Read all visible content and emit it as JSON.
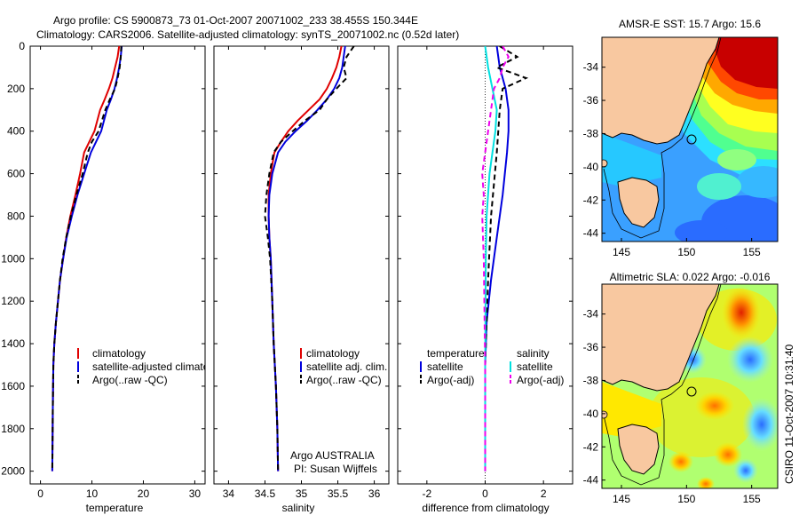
{
  "title_line1": "Argo profile: CS 5900873_73 01-Oct-2007 20071002_233 38.455S 150.344E",
  "title_line2": "Climatology: CARS2006. Satellite-adjusted climatology: synTS_20071002.nc (0.52d later)",
  "credit": "CSIRO 11-Oct-2007 10:31:40",
  "colors": {
    "clim": "#e00000",
    "sat": "#0000dd",
    "argo": "#000000",
    "salsat": "#00e0e0",
    "salargo": "#ee00ee"
  },
  "chart_data": [
    {
      "type": "line",
      "xlabel": "temperature",
      "xlim": [
        -2,
        32
      ],
      "xticks": [
        0,
        10,
        20,
        30
      ],
      "ylim": [
        0,
        2060
      ],
      "yticks": [
        0,
        200,
        400,
        600,
        800,
        1000,
        1200,
        1400,
        1600,
        1800,
        2000
      ],
      "y_reversed": true,
      "legend": [
        "climatology",
        "satellite-adjusted climatology",
        "Argo(..raw -QC)"
      ],
      "series": [
        {
          "name": "climatology",
          "color": "#e00000",
          "dash": "",
          "x": [
            15.3,
            15.0,
            14.5,
            14.0,
            13.3,
            12.5,
            11.6,
            10.5,
            9.5,
            8.5,
            7.7,
            6.8,
            5.8,
            5.0,
            4.4,
            3.8,
            3.4,
            3.0,
            2.7,
            2.5,
            2.4,
            2.3
          ],
          "y": [
            0,
            50,
            100,
            150,
            200,
            250,
            300,
            400,
            450,
            500,
            600,
            700,
            800,
            900,
            1000,
            1100,
            1200,
            1300,
            1400,
            1500,
            1700,
            2000
          ]
        },
        {
          "name": "satellite-adjusted climatology",
          "color": "#0000dd",
          "dash": "",
          "x": [
            15.8,
            15.6,
            15.3,
            14.9,
            14.4,
            13.7,
            12.9,
            11.8,
            10.8,
            9.8,
            8.5,
            7.2,
            6.1,
            5.1,
            4.4,
            3.8,
            3.4,
            3.0,
            2.7,
            2.5,
            2.4,
            2.3
          ],
          "y": [
            0,
            50,
            100,
            150,
            200,
            250,
            300,
            400,
            450,
            500,
            600,
            700,
            800,
            900,
            1000,
            1100,
            1200,
            1300,
            1400,
            1500,
            1700,
            2000
          ]
        },
        {
          "name": "Argo(..raw -QC)",
          "color": "#000000",
          "dash": "6,4",
          "x": [
            15.7,
            15.6,
            15.4,
            15.0,
            14.5,
            13.5,
            12.6,
            11.3,
            10.0,
            9.2,
            8.2,
            7.0,
            5.9,
            5.0,
            4.3,
            3.8,
            3.4,
            3.0,
            2.7,
            2.5,
            2.4,
            2.3
          ],
          "y": [
            0,
            50,
            100,
            150,
            200,
            250,
            300,
            400,
            450,
            500,
            600,
            700,
            800,
            900,
            1000,
            1100,
            1200,
            1300,
            1400,
            1500,
            1700,
            2000
          ]
        }
      ]
    },
    {
      "type": "line",
      "xlabel": "salinity",
      "xlim": [
        33.8,
        36.2
      ],
      "xticks": [
        34,
        34.5,
        35,
        35.5,
        36
      ],
      "ylim": [
        0,
        2060
      ],
      "y_reversed": true,
      "legend": [
        "climatology",
        "satellite adj. clim.",
        "Argo(..raw -QC)"
      ],
      "annotation_line1": "Argo AUSTRALIA",
      "annotation_line2": "PI: Susan Wijffels",
      "series": [
        {
          "name": "climatology",
          "color": "#e00000",
          "dash": "",
          "x": [
            35.55,
            35.52,
            35.48,
            35.42,
            35.35,
            35.25,
            35.1,
            34.95,
            34.82,
            34.72,
            34.63,
            34.58,
            34.55,
            34.55,
            34.56,
            34.58,
            34.6,
            34.62,
            34.65,
            34.67,
            34.68
          ],
          "y": [
            0,
            50,
            100,
            150,
            200,
            250,
            300,
            350,
            400,
            450,
            500,
            600,
            700,
            800,
            900,
            1000,
            1200,
            1400,
            1600,
            1800,
            2000
          ]
        },
        {
          "name": "satellite adj. clim.",
          "color": "#0000dd",
          "dash": "",
          "x": [
            35.6,
            35.58,
            35.56,
            35.52,
            35.45,
            35.35,
            35.22,
            35.08,
            34.92,
            34.78,
            34.68,
            34.6,
            34.56,
            34.55,
            34.56,
            34.58,
            34.6,
            34.62,
            34.65,
            34.67,
            34.68
          ],
          "y": [
            0,
            50,
            100,
            150,
            200,
            250,
            300,
            350,
            400,
            450,
            500,
            600,
            700,
            800,
            900,
            1000,
            1200,
            1400,
            1600,
            1800,
            2000
          ]
        },
        {
          "name": "Argo(..raw -QC)",
          "color": "#000000",
          "dash": "6,4",
          "x": [
            35.72,
            35.62,
            35.58,
            35.62,
            35.48,
            35.35,
            35.25,
            35.05,
            34.88,
            34.72,
            34.62,
            34.56,
            34.52,
            34.5,
            34.54,
            34.57,
            34.6,
            34.62,
            34.65,
            34.67,
            34.68
          ],
          "y": [
            0,
            50,
            100,
            150,
            200,
            250,
            300,
            350,
            400,
            450,
            500,
            600,
            700,
            800,
            900,
            1000,
            1200,
            1400,
            1600,
            1800,
            2000
          ]
        }
      ]
    },
    {
      "type": "line",
      "xlabel": "difference from climatology",
      "xlim": [
        -3,
        3
      ],
      "xticks": [
        -2,
        0,
        2
      ],
      "ylim": [
        0,
        2060
      ],
      "y_reversed": true,
      "legend_col1_title": "temperature",
      "legend_col2_title": "salinity",
      "legend": [
        "satellite",
        "Argo(-adj)",
        "satellite",
        "Argo(-adj)"
      ],
      "series": [
        {
          "name": "temperature satellite",
          "color": "#0000dd",
          "dash": "",
          "x": [
            0.4,
            0.5,
            0.7,
            0.8,
            0.8,
            0.75,
            0.6,
            0.4,
            0.2,
            0.05,
            0.0,
            0.0
          ],
          "y": [
            0,
            100,
            200,
            300,
            400,
            500,
            700,
            900,
            1100,
            1300,
            1500,
            2000
          ]
        },
        {
          "name": "temperature Argo(-adj)",
          "color": "#000000",
          "dash": "6,4",
          "x": [
            0.5,
            1.1,
            0.4,
            1.4,
            0.6,
            0.5,
            0.4,
            0.2,
            0.1,
            0.05,
            0.0,
            0.0,
            0.0
          ],
          "y": [
            0,
            50,
            100,
            150,
            200,
            300,
            500,
            800,
            1100,
            1300,
            1500,
            1800,
            2000
          ]
        },
        {
          "name": "salinity satellite",
          "color": "#00e0e0",
          "dash": "",
          "x": [
            0.0,
            0.1,
            0.25,
            0.4,
            0.35,
            0.25,
            0.15,
            0.05,
            0.02,
            0.0,
            0.0
          ],
          "y": [
            0,
            100,
            200,
            300,
            400,
            500,
            600,
            800,
            1000,
            1500,
            2000
          ]
        },
        {
          "name": "salinity Argo(-adj)",
          "color": "#ee00ee",
          "dash": "6,4",
          "x": [
            0.6,
            0.8,
            0.6,
            0.5,
            0.3,
            0.2,
            0.1,
            -0.1,
            -0.05,
            -0.1,
            -0.05,
            0.0,
            0.0
          ],
          "y": [
            0,
            50,
            100,
            150,
            200,
            300,
            400,
            600,
            700,
            800,
            1000,
            1500,
            2000
          ]
        }
      ]
    },
    {
      "type": "heatmap",
      "title": "AMSR-E SST: 15.7 Argo: 15.6",
      "xticks": [
        145,
        150,
        155
      ],
      "yticks": [
        -34,
        -36,
        -38,
        -40,
        -42,
        -44
      ],
      "xlim": [
        143.5,
        157
      ],
      "ylim": [
        -44.5,
        -32.2
      ],
      "float_lon": 150.344,
      "float_lat": -38.455
    },
    {
      "type": "heatmap",
      "title": "Altimetric SLA: 0.022 Argo: -0.016",
      "xticks": [
        145,
        150,
        155
      ],
      "yticks": [
        -34,
        -36,
        -38,
        -40,
        -42,
        -44
      ],
      "xlim": [
        143.5,
        157
      ],
      "ylim": [
        -44.5,
        -32.2
      ],
      "float_lon": 150.344,
      "float_lat": -38.455
    }
  ]
}
